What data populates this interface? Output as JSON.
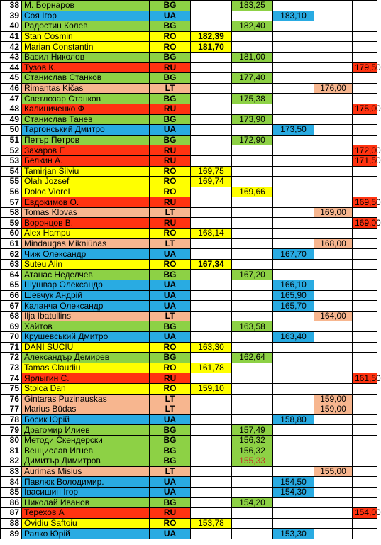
{
  "colors": {
    "BG": "#8dd145",
    "UA": "#29abe2",
    "RO": "#ffff00",
    "RU": "#ff3311",
    "LT": "#f7b68f",
    "blank": "#ffffff",
    "red_text": "#c0392b"
  },
  "rows": [
    {
      "num": "38",
      "name": "М. Борнаров",
      "country": "BG",
      "score": "183,25",
      "col": 2
    },
    {
      "num": "39",
      "name": "Соя Ігор",
      "country": "UA",
      "score": "183,10",
      "col": 3
    },
    {
      "num": "40",
      "name": "Радостин Колев",
      "country": "BG",
      "score": "182,40",
      "col": 2
    },
    {
      "num": "41",
      "name": " Stan Cosmin",
      "country": "RO",
      "score": "182,39",
      "col": 1,
      "bold": true
    },
    {
      "num": "42",
      "name": "Marian Constantin",
      "country": "RO",
      "score": "181,70",
      "col": 1,
      "bold": true
    },
    {
      "num": "43",
      "name": "Васил Николов",
      "country": "BG",
      "score": "181,00",
      "col": 2
    },
    {
      "num": "44",
      "name": "Тузов К.",
      "country": "RU",
      "score": "179,50",
      "col": 5
    },
    {
      "num": "45",
      "name": "Станислав Станков",
      "country": "BG",
      "score": "177,40",
      "col": 2
    },
    {
      "num": "46",
      "name": "Rimantas Kičas",
      "country": "LT",
      "score": "176,00",
      "col": 4
    },
    {
      "num": "47",
      "name": "Светлозар Станков",
      "country": "BG",
      "score": "175,38",
      "col": 2
    },
    {
      "num": "48",
      "name": "Калиниченко Ф",
      "country": "RU",
      "score": "175,00",
      "col": 5
    },
    {
      "num": "49",
      "name": "Станислав Танев",
      "country": "BG",
      "score": "173,90",
      "col": 2
    },
    {
      "num": "50",
      "name": "Таргонський Дмитро",
      "country": "UA",
      "score": "173,50",
      "col": 3
    },
    {
      "num": "51",
      "name": "Петър Петров",
      "country": "BG",
      "score": "172,90",
      "col": 2
    },
    {
      "num": "52",
      "name": "Захаров Е",
      "country": "RU",
      "score": "172,00",
      "col": 5
    },
    {
      "num": "53",
      "name": "Белкин А.",
      "country": "RU",
      "score": "171,50",
      "col": 5
    },
    {
      "num": "54",
      "name": "Tamirjan Silviu",
      "country": "RO",
      "score": "169,75",
      "col": 1
    },
    {
      "num": "55",
      "name": "Olah Jozsef",
      "country": "RO",
      "score": "169,74",
      "col": 1
    },
    {
      "num": "56",
      "name": "Doloc Viorel",
      "country": "RO",
      "score": "169,66",
      "col": 2
    },
    {
      "num": "57",
      "name": "Евдокимов О.",
      "country": "RU",
      "score": "169,50",
      "col": 5
    },
    {
      "num": "58",
      "name": "Tomas Klovas",
      "country": "LT",
      "score": "169,00",
      "col": 4
    },
    {
      "num": "59",
      "name": "Воронцов В.",
      "country": "RU",
      "score": "169,00",
      "col": 5
    },
    {
      "num": "60",
      "name": "Alex Hampu",
      "country": "RO",
      "score": "168,14",
      "col": 1
    },
    {
      "num": "61",
      "name": "Mindaugas Mikniūnas",
      "country": "LT",
      "score": "168,00",
      "col": 4
    },
    {
      "num": "62",
      "name": "Чиж Олександр",
      "country": "UA",
      "score": "167,70",
      "col": 3
    },
    {
      "num": "63",
      "name": "Suteu Alin",
      "country": "RO",
      "score": "167,34",
      "col": 1,
      "bold": true
    },
    {
      "num": "64",
      "name": "Атанас Неделчев",
      "country": "BG",
      "score": "167,20",
      "col": 2
    },
    {
      "num": "65",
      "name": "Шушвар Олександр",
      "country": "UA",
      "score": "166,10",
      "col": 3
    },
    {
      "num": "66",
      "name": "Шевчук Андрій",
      "country": "UA",
      "score": "165,90",
      "col": 3
    },
    {
      "num": "67",
      "name": "Каланча Олександр",
      "country": "UA",
      "score": "165,70",
      "col": 3
    },
    {
      "num": "68",
      "name": "Ilja Ibatullins",
      "country": "LT",
      "score": "164,00",
      "col": 4
    },
    {
      "num": "69",
      "name": "Хайтов",
      "country": "BG",
      "score": "163,58",
      "col": 2
    },
    {
      "num": "70",
      "name": "Крушевський Дмитро",
      "country": "UA",
      "score": "163,40",
      "col": 3
    },
    {
      "num": "71",
      "name": " DANI SUCIU",
      "country": "RO",
      "score": "163,30",
      "col": 1
    },
    {
      "num": "72",
      "name": "Александър Демирев",
      "country": "BG",
      "score": "162,64",
      "col": 2
    },
    {
      "num": "73",
      "name": "Tamas Claudiu",
      "country": "RO",
      "score": "161,78",
      "col": 1
    },
    {
      "num": "74",
      "name": "Ярлыгин С.",
      "country": "RU",
      "score": "161,50",
      "col": 5
    },
    {
      "num": "75",
      "name": "Stoica Dan",
      "country": "RO",
      "score": "159,10",
      "col": 1
    },
    {
      "num": "76",
      "name": "Gintaras Puzinauskas",
      "country": "LT",
      "score": "159,00",
      "col": 4
    },
    {
      "num": "77",
      "name": "Marius Būdas",
      "country": "LT",
      "score": "159,00",
      "col": 4
    },
    {
      "num": "78",
      "name": "Босик Юрій",
      "country": "UA",
      "score": "158,80",
      "col": 3
    },
    {
      "num": "79",
      "name": "Драгомир Илиев",
      "country": "BG",
      "score": "157,49",
      "col": 2
    },
    {
      "num": "80",
      "name": "Методи Скендерски",
      "country": "BG",
      "score": "156,32",
      "col": 2
    },
    {
      "num": "81",
      "name": "Венцислав Игнев",
      "country": "BG",
      "score": "156,32",
      "col": 2
    },
    {
      "num": "82",
      "name": "Димитър Димитров",
      "country": "BG",
      "score": "155,33",
      "col": 2,
      "red": true
    },
    {
      "num": "83",
      "name": "Aurimas Misius",
      "country": "LT",
      "score": "155,00",
      "col": 4
    },
    {
      "num": "84",
      "name": "Павлюк Володимир.",
      "country": "UA",
      "score": "154,50",
      "col": 3
    },
    {
      "num": "85",
      "name": "Івасишин Ігор",
      "country": "UA",
      "score": "154,30",
      "col": 3
    },
    {
      "num": "86",
      "name": "Николай Иванов",
      "country": "BG",
      "score": "154,20",
      "col": 2
    },
    {
      "num": "87",
      "name": "Терехов А",
      "country": "RU",
      "score": "154,00",
      "col": 5
    },
    {
      "num": "88",
      "name": "Ovidiu Saftoiu",
      "country": "RO",
      "score": "153,78",
      "col": 1
    },
    {
      "num": "89",
      "name": "Ралко Юрій",
      "country": "UA",
      "score": "153,30",
      "col": 3
    }
  ]
}
